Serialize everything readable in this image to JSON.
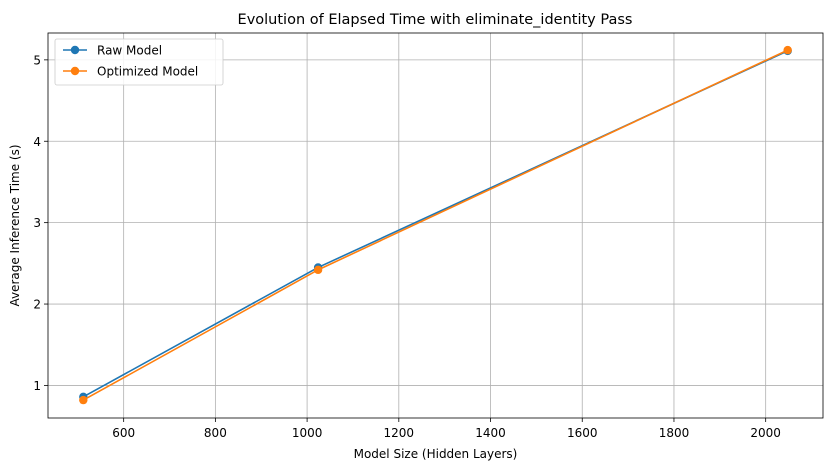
{
  "chart_data": {
    "type": "line",
    "title": "Evolution of Elapsed Time with eliminate_identity Pass",
    "xlabel": "Model Size (Hidden Layers)",
    "ylabel": "Average Inference Time (s)",
    "xlim": [
      435,
      2125
    ],
    "ylim": [
      0.6,
      5.33
    ],
    "xticks": [
      600,
      800,
      1000,
      1200,
      1400,
      1600,
      1800,
      2000
    ],
    "yticks": [
      1,
      2,
      3,
      4,
      5
    ],
    "grid": true,
    "legend_position": "upper-left",
    "series": [
      {
        "name": "Raw Model",
        "color": "#1f77b4",
        "marker": "circle",
        "x": [
          512,
          1024,
          2048
        ],
        "y": [
          0.86,
          2.45,
          5.11
        ]
      },
      {
        "name": "Optimized Model",
        "color": "#ff7f0e",
        "marker": "circle",
        "x": [
          512,
          1024,
          2048
        ],
        "y": [
          0.82,
          2.42,
          5.12
        ]
      }
    ]
  }
}
